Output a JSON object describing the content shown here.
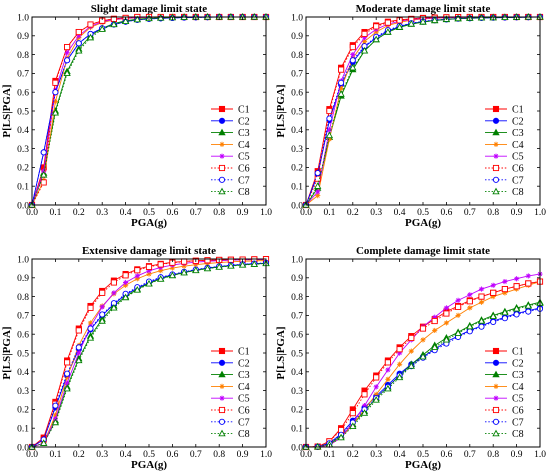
{
  "series_styles": [
    {
      "name": "C1",
      "color": "#ff0000",
      "marker": "square-filled",
      "dash": "solid"
    },
    {
      "name": "C2",
      "color": "#0000ff",
      "marker": "circle-filled",
      "dash": "solid"
    },
    {
      "name": "C3",
      "color": "#008000",
      "marker": "triangle-filled",
      "dash": "solid"
    },
    {
      "name": "C4",
      "color": "#ff8000",
      "marker": "star",
      "dash": "solid"
    },
    {
      "name": "C5",
      "color": "#c000ff",
      "marker": "star",
      "dash": "solid"
    },
    {
      "name": "C6",
      "color": "#ff0000",
      "marker": "square-open",
      "dash": "dotted"
    },
    {
      "name": "C7",
      "color": "#0000ff",
      "marker": "circle-open",
      "dash": "dotted"
    },
    {
      "name": "C8",
      "color": "#008000",
      "marker": "triangle-open",
      "dash": "dotted"
    }
  ],
  "chart_data": [
    {
      "type": "line",
      "title": "Slight damage limit state",
      "xlabel": "PGA(g)",
      "ylabel": "P[LS|PGA]",
      "xlim": [
        0,
        1
      ],
      "ylim": [
        0,
        1
      ],
      "xticks": [
        "0.0",
        "0.1",
        "0.2",
        "0.3",
        "0.4",
        "0.5",
        "0.6",
        "0.7",
        "0.8",
        "0.9",
        "1.0"
      ],
      "yticks": [
        "0.0",
        "0.1",
        "0.2",
        "0.3",
        "0.4",
        "0.5",
        "0.6",
        "0.7",
        "0.8",
        "0.9",
        "1.0"
      ],
      "legend_position": "bottom-right",
      "grid": false,
      "x": [
        0,
        0.05,
        0.1,
        0.15,
        0.2,
        0.25,
        0.3,
        0.35,
        0.4,
        0.45,
        0.5,
        0.55,
        0.6,
        0.65,
        0.7,
        0.75,
        0.8,
        0.85,
        0.9,
        0.95,
        1.0
      ],
      "series": [
        {
          "name": "C1",
          "values": [
            0,
            0.2,
            0.66,
            0.84,
            0.92,
            0.96,
            0.98,
            0.99,
            0.995,
            1,
            1,
            1,
            1,
            1,
            1,
            1,
            1,
            1,
            1,
            1,
            1
          ]
        },
        {
          "name": "C2",
          "values": [
            0,
            0.28,
            0.6,
            0.77,
            0.86,
            0.91,
            0.94,
            0.96,
            0.975,
            0.985,
            0.99,
            0.993,
            0.995,
            0.997,
            0.998,
            0.999,
            1,
            1,
            1,
            1,
            1
          ]
        },
        {
          "name": "C3",
          "values": [
            0,
            0.17,
            0.5,
            0.71,
            0.83,
            0.9,
            0.94,
            0.965,
            0.98,
            0.988,
            0.993,
            0.996,
            0.998,
            0.999,
            1,
            1,
            1,
            1,
            1,
            1,
            1
          ]
        },
        {
          "name": "C4",
          "values": [
            0,
            0.13,
            0.55,
            0.78,
            0.89,
            0.945,
            0.97,
            0.985,
            0.992,
            0.996,
            0.998,
            0.999,
            1,
            1,
            1,
            1,
            1,
            1,
            1,
            1,
            1
          ]
        },
        {
          "name": "C5",
          "values": [
            0,
            0.18,
            0.61,
            0.81,
            0.9,
            0.95,
            0.975,
            0.987,
            0.993,
            0.997,
            0.999,
            1,
            1,
            1,
            1,
            1,
            1,
            1,
            1,
            1,
            1
          ]
        },
        {
          "name": "C6",
          "values": [
            0,
            0.12,
            0.65,
            0.84,
            0.92,
            0.96,
            0.98,
            0.99,
            0.995,
            1,
            1,
            1,
            1,
            1,
            1,
            1,
            1,
            1,
            1,
            1,
            1
          ]
        },
        {
          "name": "C7",
          "values": [
            0,
            0.28,
            0.6,
            0.77,
            0.86,
            0.91,
            0.94,
            0.96,
            0.975,
            0.985,
            0.99,
            0.993,
            0.995,
            0.997,
            0.998,
            0.999,
            1,
            1,
            1,
            1,
            1
          ]
        },
        {
          "name": "C8",
          "values": [
            0,
            0.16,
            0.49,
            0.7,
            0.82,
            0.89,
            0.935,
            0.96,
            0.977,
            0.986,
            0.992,
            0.995,
            0.997,
            0.999,
            1,
            1,
            1,
            1,
            1,
            1,
            1
          ]
        }
      ]
    },
    {
      "type": "line",
      "title": "Moderate damage limit state",
      "xlabel": "PGA(g)",
      "ylabel": "P[LS|PGA]",
      "xlim": [
        0,
        1
      ],
      "ylim": [
        0,
        1
      ],
      "xticks": [
        "0.0",
        "0.1",
        "0.2",
        "0.3",
        "0.4",
        "0.5",
        "0.6",
        "0.7",
        "0.8",
        "0.9",
        "1.0"
      ],
      "yticks": [
        "0.0",
        "0.1",
        "0.2",
        "0.3",
        "0.4",
        "0.5",
        "0.6",
        "0.7",
        "0.8",
        "0.9",
        "1.0"
      ],
      "legend_position": "bottom-right",
      "grid": false,
      "x": [
        0,
        0.05,
        0.1,
        0.15,
        0.2,
        0.25,
        0.3,
        0.35,
        0.4,
        0.45,
        0.5,
        0.55,
        0.6,
        0.65,
        0.7,
        0.75,
        0.8,
        0.85,
        0.9,
        0.95,
        1.0
      ],
      "series": [
        {
          "name": "C1",
          "values": [
            0,
            0.18,
            0.51,
            0.73,
            0.85,
            0.92,
            0.955,
            0.975,
            0.985,
            0.99,
            0.995,
            0.997,
            0.998,
            0.999,
            1,
            1,
            1,
            1,
            1,
            1,
            1
          ]
        },
        {
          "name": "C2",
          "values": [
            0,
            0.16,
            0.45,
            0.64,
            0.76,
            0.84,
            0.89,
            0.925,
            0.95,
            0.965,
            0.975,
            0.982,
            0.987,
            0.991,
            0.993,
            0.995,
            0.996,
            0.997,
            0.998,
            0.999,
            1
          ]
        },
        {
          "name": "C3",
          "values": [
            0,
            0.09,
            0.36,
            0.58,
            0.72,
            0.82,
            0.88,
            0.92,
            0.945,
            0.962,
            0.973,
            0.981,
            0.987,
            0.991,
            0.994,
            0.996,
            0.997,
            0.998,
            0.999,
            1,
            1
          ]
        },
        {
          "name": "C4",
          "values": [
            0,
            0.05,
            0.35,
            0.62,
            0.78,
            0.87,
            0.92,
            0.955,
            0.972,
            0.983,
            0.99,
            0.994,
            0.996,
            0.998,
            0.999,
            1,
            1,
            1,
            1,
            1,
            1
          ]
        },
        {
          "name": "C5",
          "values": [
            0,
            0.07,
            0.4,
            0.66,
            0.8,
            0.89,
            0.935,
            0.962,
            0.978,
            0.987,
            0.992,
            0.995,
            0.997,
            0.998,
            0.999,
            1,
            1,
            1,
            1,
            1,
            1
          ]
        },
        {
          "name": "C6",
          "values": [
            0,
            0.14,
            0.5,
            0.72,
            0.84,
            0.91,
            0.95,
            0.97,
            0.982,
            0.989,
            0.994,
            0.996,
            0.998,
            0.999,
            1,
            1,
            1,
            1,
            1,
            1,
            1
          ]
        },
        {
          "name": "C7",
          "values": [
            0,
            0.17,
            0.46,
            0.65,
            0.77,
            0.845,
            0.895,
            0.93,
            0.952,
            0.967,
            0.977,
            0.984,
            0.988,
            0.992,
            0.994,
            0.996,
            0.997,
            0.998,
            0.999,
            0.999,
            1
          ]
        },
        {
          "name": "C8",
          "values": [
            0,
            0.1,
            0.37,
            0.59,
            0.73,
            0.82,
            0.88,
            0.92,
            0.946,
            0.963,
            0.974,
            0.982,
            0.988,
            0.992,
            0.994,
            0.996,
            0.997,
            0.998,
            0.999,
            1,
            1
          ]
        }
      ]
    },
    {
      "type": "line",
      "title": "Extensive damage limit state",
      "xlabel": "PGA(g)",
      "ylabel": "P[LS|PGA]",
      "xlim": [
        0,
        1
      ],
      "ylim": [
        0,
        1
      ],
      "xticks": [
        "0.0",
        "0.1",
        "0.2",
        "0.3",
        "0.4",
        "0.5",
        "0.6",
        "0.7",
        "0.8",
        "0.9",
        "1.0"
      ],
      "yticks": [
        "0.0",
        "0.1",
        "0.2",
        "0.3",
        "0.4",
        "0.5",
        "0.6",
        "0.7",
        "0.8",
        "0.9",
        "1.0"
      ],
      "legend_position": "bottom-right",
      "grid": false,
      "x": [
        0,
        0.05,
        0.1,
        0.15,
        0.2,
        0.25,
        0.3,
        0.35,
        0.4,
        0.45,
        0.5,
        0.55,
        0.6,
        0.65,
        0.7,
        0.75,
        0.8,
        0.85,
        0.9,
        0.95,
        1.0
      ],
      "series": [
        {
          "name": "C1",
          "values": [
            0,
            0.05,
            0.24,
            0.46,
            0.63,
            0.75,
            0.83,
            0.885,
            0.92,
            0.945,
            0.962,
            0.974,
            0.982,
            0.987,
            0.991,
            0.993,
            0.995,
            0.996,
            0.997,
            0.998,
            0.999
          ]
        },
        {
          "name": "C2",
          "values": [
            0,
            0.04,
            0.21,
            0.38,
            0.52,
            0.625,
            0.7,
            0.76,
            0.81,
            0.845,
            0.875,
            0.9,
            0.915,
            0.93,
            0.942,
            0.952,
            0.96,
            0.966,
            0.971,
            0.975,
            0.978
          ]
        },
        {
          "name": "C3",
          "values": [
            0,
            0.02,
            0.14,
            0.32,
            0.47,
            0.59,
            0.68,
            0.75,
            0.8,
            0.84,
            0.87,
            0.895,
            0.913,
            0.928,
            0.94,
            0.95,
            0.958,
            0.964,
            0.969,
            0.973,
            0.977
          ]
        },
        {
          "name": "C4",
          "values": [
            0,
            0.02,
            0.17,
            0.37,
            0.54,
            0.66,
            0.75,
            0.815,
            0.86,
            0.895,
            0.92,
            0.938,
            0.952,
            0.962,
            0.97,
            0.976,
            0.981,
            0.985,
            0.988,
            0.99,
            0.992
          ]
        },
        {
          "name": "C5",
          "values": [
            0,
            0.02,
            0.15,
            0.34,
            0.5,
            0.64,
            0.745,
            0.82,
            0.875,
            0.91,
            0.937,
            0.955,
            0.968,
            0.977,
            0.983,
            0.988,
            0.991,
            0.994,
            0.996,
            0.997,
            0.998
          ]
        },
        {
          "name": "C6",
          "values": [
            0,
            0.04,
            0.23,
            0.45,
            0.62,
            0.74,
            0.82,
            0.875,
            0.913,
            0.94,
            0.958,
            0.971,
            0.98,
            0.986,
            0.99,
            0.993,
            0.995,
            0.996,
            0.997,
            0.998,
            0.999
          ]
        },
        {
          "name": "C7",
          "values": [
            0,
            0.04,
            0.22,
            0.39,
            0.53,
            0.63,
            0.705,
            0.765,
            0.815,
            0.85,
            0.88,
            0.903,
            0.918,
            0.932,
            0.944,
            0.953,
            0.961,
            0.967,
            0.972,
            0.976,
            0.979
          ]
        },
        {
          "name": "C8",
          "values": [
            0,
            0.02,
            0.13,
            0.31,
            0.46,
            0.58,
            0.67,
            0.74,
            0.795,
            0.835,
            0.868,
            0.893,
            0.912,
            0.927,
            0.939,
            0.949,
            0.957,
            0.963,
            0.968,
            0.972,
            0.976
          ]
        }
      ]
    },
    {
      "type": "line",
      "title": "Complete damage limit state",
      "xlabel": "PGA(g)",
      "ylabel": "P[LS|PGA]",
      "xlim": [
        0,
        1
      ],
      "ylim": [
        0,
        1
      ],
      "xticks": [
        "0.0",
        "0.1",
        "0.2",
        "0.3",
        "0.4",
        "0.5",
        "0.6",
        "0.7",
        "0.8",
        "0.9",
        "1.0"
      ],
      "yticks": [
        "0.0",
        "0.1",
        "0.2",
        "0.3",
        "0.4",
        "0.5",
        "0.6",
        "0.7",
        "0.8",
        "0.9",
        "1.0"
      ],
      "legend_position": "bottom-right",
      "grid": false,
      "x": [
        0,
        0.05,
        0.1,
        0.15,
        0.2,
        0.25,
        0.3,
        0.35,
        0.4,
        0.45,
        0.5,
        0.55,
        0.6,
        0.65,
        0.7,
        0.75,
        0.8,
        0.85,
        0.9,
        0.95,
        1.0
      ],
      "series": [
        {
          "name": "C1",
          "values": [
            0,
            0.002,
            0.03,
            0.1,
            0.2,
            0.3,
            0.38,
            0.46,
            0.53,
            0.59,
            0.64,
            0.68,
            0.72,
            0.75,
            0.78,
            0.8,
            0.82,
            0.84,
            0.855,
            0.87,
            0.88
          ]
        },
        {
          "name": "C2",
          "values": [
            0,
            0.001,
            0.02,
            0.07,
            0.14,
            0.21,
            0.27,
            0.33,
            0.39,
            0.44,
            0.48,
            0.52,
            0.56,
            0.59,
            0.62,
            0.645,
            0.67,
            0.69,
            0.71,
            0.725,
            0.74
          ]
        },
        {
          "name": "C3",
          "values": [
            0,
            0.001,
            0.015,
            0.06,
            0.12,
            0.19,
            0.26,
            0.32,
            0.38,
            0.44,
            0.49,
            0.54,
            0.58,
            0.61,
            0.645,
            0.675,
            0.7,
            0.72,
            0.74,
            0.755,
            0.77
          ]
        },
        {
          "name": "C4",
          "values": [
            0,
            0.001,
            0.01,
            0.05,
            0.12,
            0.2,
            0.28,
            0.36,
            0.44,
            0.51,
            0.57,
            0.62,
            0.66,
            0.7,
            0.74,
            0.77,
            0.8,
            0.82,
            0.84,
            0.86,
            0.88
          ]
        },
        {
          "name": "C5",
          "values": [
            0,
            0.001,
            0.01,
            0.05,
            0.13,
            0.22,
            0.32,
            0.41,
            0.5,
            0.57,
            0.64,
            0.69,
            0.74,
            0.78,
            0.81,
            0.84,
            0.86,
            0.88,
            0.895,
            0.91,
            0.92
          ]
        },
        {
          "name": "C6",
          "values": [
            0,
            0.002,
            0.03,
            0.09,
            0.18,
            0.28,
            0.37,
            0.45,
            0.52,
            0.58,
            0.63,
            0.67,
            0.71,
            0.745,
            0.775,
            0.8,
            0.82,
            0.84,
            0.855,
            0.87,
            0.88
          ]
        },
        {
          "name": "C7",
          "values": [
            0,
            0.001,
            0.02,
            0.065,
            0.13,
            0.2,
            0.26,
            0.32,
            0.38,
            0.43,
            0.475,
            0.515,
            0.55,
            0.585,
            0.615,
            0.64,
            0.665,
            0.685,
            0.705,
            0.72,
            0.735
          ]
        },
        {
          "name": "C8",
          "values": [
            0,
            0.001,
            0.012,
            0.05,
            0.11,
            0.18,
            0.25,
            0.31,
            0.37,
            0.43,
            0.48,
            0.53,
            0.57,
            0.605,
            0.64,
            0.67,
            0.695,
            0.715,
            0.735,
            0.75,
            0.765
          ]
        }
      ]
    }
  ]
}
